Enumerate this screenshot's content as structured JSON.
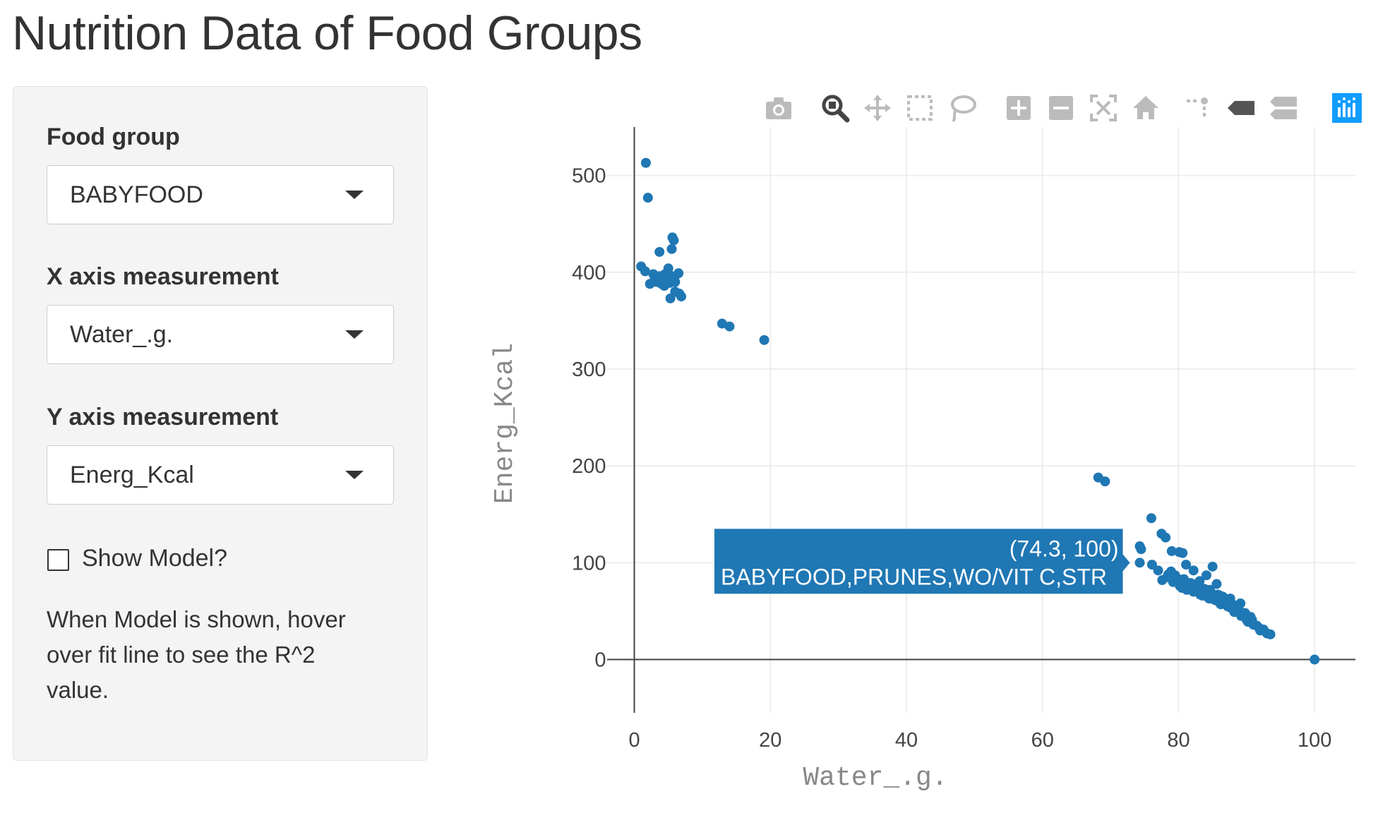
{
  "page": {
    "title": "Nutrition Data of Food Groups"
  },
  "sidebar": {
    "food_group_label": "Food group",
    "food_group_value": "BABYFOOD",
    "x_label": "X axis measurement",
    "x_value": "Water_.g.",
    "y_label": "Y axis measurement",
    "y_value": "Energ_Kcal",
    "show_model_label": "Show Model?",
    "show_model_checked": false,
    "help_text": "When Model is shown, hover over fit line to see the R^2 value."
  },
  "modebar": {
    "icons": [
      "camera-icon",
      "zoom-icon",
      "pan-icon",
      "box-select-icon",
      "lasso-select-icon",
      "zoom-in-icon",
      "zoom-out-icon",
      "autoscale-icon",
      "reset-axes-icon",
      "spike-lines-icon",
      "hover-closest-icon",
      "hover-compare-icon",
      "plotly-logo-icon"
    ],
    "active": "zoom-icon",
    "color": "#bbbbbb",
    "active_color": "#444444",
    "logo_color": "#119dff"
  },
  "tooltip": {
    "coord_text": "(74.3, 100)",
    "name_text": "BABYFOOD,PRUNES,WO/VIT C,STR",
    "point": [
      74.3,
      100
    ],
    "bg_color": "#1f77b4"
  },
  "chart_data": {
    "type": "scatter",
    "title": "",
    "xlabel": "Water_.g.",
    "ylabel": "Energ_Kcal",
    "xlim": [
      -4,
      106
    ],
    "ylim": [
      -55,
      550
    ],
    "xticks": [
      0,
      20,
      40,
      60,
      80,
      100
    ],
    "yticks": [
      0,
      100,
      200,
      300,
      400,
      500
    ],
    "grid": true,
    "marker_color": "#1f77b4",
    "series": [
      {
        "x": [
          1.7,
          2.0,
          3.7,
          5.6,
          5.8,
          5.5,
          3.7,
          1.0,
          1.6,
          2.3,
          3.0,
          3.5,
          4.0,
          4.5,
          5.0,
          5.5,
          6.0,
          6.5,
          2.8,
          3.3,
          4.2,
          4.8,
          5.2,
          5.9,
          6.6,
          4.4,
          5.3,
          6.0,
          6.9,
          12.9,
          14.0,
          19.1
        ],
        "y": [
          513,
          477,
          421,
          436,
          433,
          424,
          396,
          406,
          401,
          388,
          393,
          392,
          388,
          398,
          404,
          396,
          390,
          399,
          398,
          390,
          393,
          389,
          389,
          395,
          378,
          386,
          373,
          380,
          375,
          347,
          344,
          330
        ],
        "name": ""
      },
      {
        "x": [
          68.2,
          69.2,
          74.3,
          74.5,
          74.3,
          76.0,
          77.5,
          78.1,
          79.0,
          80.1,
          80.6,
          81.1,
          82.2,
          84.1,
          85.0,
          85.6,
          76.1,
          77.0,
          77.6,
          78.3,
          78.9,
          79.5,
          80.0,
          80.5,
          81.0,
          81.5,
          82.0,
          82.5,
          83.0,
          83.5,
          84.0,
          84.5,
          85.0,
          85.5,
          86.0,
          86.5,
          87.0,
          87.5,
          88.0,
          88.5,
          89.0,
          89.5,
          90.0,
          90.5,
          91.0,
          91.5,
          92.0,
          92.5,
          93.0,
          93.5,
          78.5,
          79.5,
          80.5,
          81.5,
          82.5,
          83.5,
          84.5,
          85.5,
          86.5,
          87.5,
          88.5,
          89.5,
          79.2,
          80.2,
          81.2,
          82.2,
          83.2,
          84.2,
          85.2,
          86.2,
          87.2,
          88.2,
          89.2,
          90.2,
          80.8,
          81.8,
          82.8,
          83.8,
          84.8,
          85.8,
          86.8,
          87.8,
          88.8,
          89.8,
          90.8,
          91.8,
          83.1,
          84.6,
          86.1,
          87.6,
          89.1,
          90.6,
          100.0
        ],
        "y": [
          188,
          184,
          100,
          114,
          117,
          146,
          130,
          126,
          112,
          111,
          110,
          98,
          92,
          87,
          96,
          78,
          98,
          92,
          82,
          85,
          91,
          87,
          83,
          77,
          80,
          76,
          78,
          72,
          74,
          70,
          68,
          71,
          64,
          66,
          62,
          65,
          57,
          60,
          52,
          55,
          50,
          48,
          41,
          43,
          36,
          35,
          30,
          31,
          27,
          26,
          88,
          84,
          74,
          73,
          71,
          66,
          63,
          61,
          59,
          54,
          51,
          45,
          80,
          76,
          72,
          70,
          67,
          65,
          62,
          57,
          55,
          49,
          45,
          39,
          83,
          79,
          75,
          73,
          69,
          67,
          61,
          58,
          52,
          48,
          41,
          33,
          81,
          72,
          66,
          63,
          58,
          44,
          0
        ],
        "name": ""
      }
    ]
  }
}
